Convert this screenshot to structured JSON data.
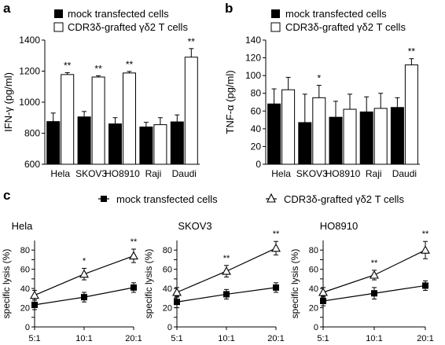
{
  "panels": {
    "a": "a",
    "b": "b",
    "c": "c"
  },
  "legend_ab": {
    "mock": "mock transfected cells",
    "cdr": "CDR3δ-grafted γδ2 T cells"
  },
  "legend_c": {
    "mock": "mock transfected cells",
    "cdr": "CDR3δ-grafted γδ2 T cells"
  },
  "colors": {
    "mock": "#000000",
    "cdr": "#ffffff",
    "axis": "#000000"
  },
  "chart_data": [
    {
      "id": "a",
      "type": "bar",
      "ylabel": "IFN-γ (pg/ml)",
      "xlabel": "",
      "ylim": [
        600,
        1400
      ],
      "yticks": [
        600,
        800,
        1000,
        1200,
        1400
      ],
      "categories": [
        "Hela",
        "SKOV3",
        "HO8910",
        "Raji",
        "Daudi"
      ],
      "series": [
        {
          "name": "mock transfected cells",
          "values": [
            875,
            905,
            860,
            840,
            873
          ],
          "errors": [
            55,
            35,
            40,
            30,
            45
          ]
        },
        {
          "name": "CDR3δ-grafted γδ2 T cells",
          "values": [
            1178,
            1162,
            1188,
            855,
            1290
          ],
          "errors": [
            12,
            8,
            10,
            45,
            55
          ]
        }
      ],
      "annotations": [
        "**",
        "**",
        "**",
        "",
        "**"
      ]
    },
    {
      "id": "b",
      "type": "bar",
      "ylabel": "TNF-α (pg/ml)",
      "xlabel": "",
      "ylim": [
        0,
        140
      ],
      "yticks": [
        0,
        20,
        40,
        60,
        80,
        100,
        120,
        140
      ],
      "categories": [
        "Hela",
        "SKOV3",
        "HO8910",
        "Raji",
        "Daudi"
      ],
      "series": [
        {
          "name": "mock transfected cells",
          "values": [
            68,
            47,
            53,
            59,
            64
          ],
          "errors": [
            17,
            32,
            18,
            17,
            11
          ]
        },
        {
          "name": "CDR3δ-grafted γδ2 T cells",
          "values": [
            84,
            75,
            62,
            63,
            112
          ],
          "errors": [
            14,
            14,
            17,
            17,
            7
          ]
        }
      ],
      "annotations": [
        "",
        "*",
        "",
        "",
        "**"
      ]
    },
    {
      "id": "c1",
      "type": "line",
      "title": "Hela",
      "ylabel": "specific lysis (%)",
      "x": [
        "5:1",
        "10:1",
        "20:1"
      ],
      "ylim": [
        0,
        90
      ],
      "yticks": [
        0,
        10,
        20,
        30,
        40,
        50,
        60,
        70,
        80
      ],
      "series": [
        {
          "name": "mock transfected cells",
          "marker": "square",
          "values": [
            23,
            31,
            41
          ],
          "errors": [
            5,
            5,
            5
          ]
        },
        {
          "name": "CDR3δ-grafted γδ2 T cells",
          "marker": "triangle",
          "values": [
            33,
            55,
            74
          ],
          "errors": [
            5,
            6,
            7
          ]
        }
      ],
      "annotations": [
        "",
        "*",
        "**"
      ]
    },
    {
      "id": "c2",
      "type": "line",
      "title": "SKOV3",
      "ylabel": "specific lysis (%)",
      "x": [
        "5:1",
        "10:1",
        "20:1"
      ],
      "ylim": [
        0,
        90
      ],
      "yticks": [
        0,
        10,
        20,
        30,
        40,
        50,
        60,
        70,
        80
      ],
      "series": [
        {
          "name": "mock transfected cells",
          "marker": "square",
          "values": [
            26,
            34,
            41
          ],
          "errors": [
            6,
            5,
            5
          ]
        },
        {
          "name": "CDR3δ-grafted γδ2 T cells",
          "marker": "triangle",
          "values": [
            36,
            58,
            82
          ],
          "errors": [
            5,
            6,
            7
          ]
        }
      ],
      "annotations": [
        "",
        "**",
        "**"
      ]
    },
    {
      "id": "c3",
      "type": "line",
      "title": "HO8910",
      "ylabel": "specific lysis (%)",
      "x": [
        "5:1",
        "10:1",
        "20:1"
      ],
      "ylim": [
        0,
        90
      ],
      "yticks": [
        0,
        10,
        20,
        30,
        40,
        50,
        60,
        70,
        80
      ],
      "series": [
        {
          "name": "mock transfected cells",
          "marker": "square",
          "values": [
            27,
            35,
            43
          ],
          "errors": [
            5,
            6,
            5
          ]
        },
        {
          "name": "CDR3δ-grafted γδ2 T cells",
          "marker": "triangle",
          "values": [
            36,
            54,
            80
          ],
          "errors": [
            5,
            5,
            9
          ]
        }
      ],
      "annotations": [
        "",
        "**",
        "**"
      ]
    }
  ]
}
